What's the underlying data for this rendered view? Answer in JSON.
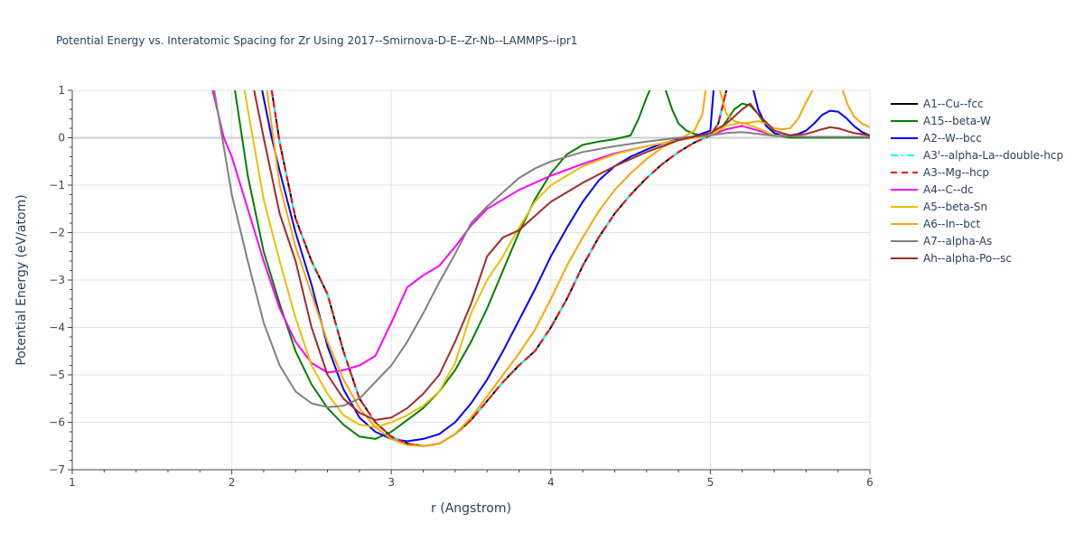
{
  "chart_data": {
    "type": "line",
    "title": "Potential Energy vs. Interatomic Spacing for Zr Using 2017--Smirnova-D-E--Zr-Nb--LAMMPS--ipr1",
    "xlabel": "r (Angstrom)",
    "ylabel": "Potential Energy (eV/atom)",
    "xlim": [
      1,
      6
    ],
    "ylim": [
      -7,
      1
    ],
    "xticks": [
      1,
      2,
      3,
      4,
      5,
      6
    ],
    "yticks": [
      -7,
      -6,
      -5,
      -4,
      -3,
      -2,
      -1,
      0,
      1
    ],
    "grid": true,
    "legend_position": "right",
    "series": [
      {
        "name": "A1--Cu--fcc",
        "color": "#000000",
        "dash": "solid",
        "x": [
          2.25,
          2.3,
          2.4,
          2.5,
          2.6,
          2.7,
          2.8,
          2.9,
          3.0,
          3.1,
          3.2,
          3.3,
          3.4,
          3.5,
          3.6,
          3.7,
          3.8,
          3.9,
          4.0,
          4.1,
          4.2,
          4.3,
          4.4,
          4.5,
          4.6,
          4.7,
          4.8,
          4.9,
          5.0,
          5.05,
          5.1
        ],
        "y": [
          1,
          -0.1,
          -1.7,
          -2.6,
          -3.3,
          -4.5,
          -5.5,
          -6.0,
          -6.3,
          -6.45,
          -6.5,
          -6.45,
          -6.25,
          -5.95,
          -5.55,
          -5.15,
          -4.8,
          -4.5,
          -4.0,
          -3.4,
          -2.7,
          -2.1,
          -1.6,
          -1.2,
          -0.85,
          -0.55,
          -0.3,
          -0.1,
          0.05,
          0.3,
          1
        ]
      },
      {
        "name": "A15--beta-W",
        "color": "#008000",
        "dash": "solid",
        "x": [
          2.02,
          2.1,
          2.2,
          2.3,
          2.4,
          2.5,
          2.6,
          2.7,
          2.8,
          2.9,
          3.0,
          3.1,
          3.2,
          3.3,
          3.4,
          3.5,
          3.6,
          3.7,
          3.8,
          3.9,
          4.0,
          4.1,
          4.2,
          4.3,
          4.4,
          4.5,
          4.55,
          4.6,
          4.62
        ],
        "y": [
          1,
          -0.8,
          -2.4,
          -3.5,
          -4.5,
          -5.2,
          -5.7,
          -6.05,
          -6.3,
          -6.35,
          -6.2,
          -5.95,
          -5.7,
          -5.35,
          -4.9,
          -4.3,
          -3.6,
          -2.8,
          -2.0,
          -1.3,
          -0.75,
          -0.35,
          -0.15,
          -0.08,
          -0.03,
          0.05,
          0.4,
          0.85,
          1
        ]
      },
      {
        "name": "A15--beta-W",
        "color": "#008000",
        "dash": "solid",
        "x": [
          4.72,
          4.76,
          4.8,
          4.85,
          4.9,
          4.95,
          5.0,
          5.05,
          5.1,
          5.15,
          5.2,
          5.25,
          5.3,
          5.35,
          5.4,
          5.45,
          5.5,
          5.6,
          5.7,
          5.8,
          5.9,
          6.0
        ],
        "y": [
          1,
          0.6,
          0.3,
          0.15,
          0.08,
          0.05,
          0.05,
          0.12,
          0.35,
          0.6,
          0.72,
          0.68,
          0.5,
          0.25,
          0.1,
          0.03,
          0.0,
          0.0,
          0.0,
          0.0,
          0.0,
          0.0
        ]
      },
      {
        "name": "A2--W--bcc",
        "color": "#0000ff",
        "dash": "solid",
        "x": [
          2.19,
          2.25,
          2.3,
          2.4,
          2.5,
          2.6,
          2.7,
          2.8,
          2.9,
          3.0,
          3.1,
          3.2,
          3.3,
          3.4,
          3.5,
          3.6,
          3.7,
          3.8,
          3.9,
          4.0,
          4.1,
          4.2,
          4.3,
          4.4,
          4.5,
          4.6,
          4.7,
          4.8,
          4.9,
          5.0,
          5.02
        ],
        "y": [
          1,
          0.0,
          -0.7,
          -2.0,
          -3.1,
          -4.4,
          -5.3,
          -5.9,
          -6.2,
          -6.35,
          -6.4,
          -6.35,
          -6.25,
          -6.0,
          -5.6,
          -5.1,
          -4.5,
          -3.85,
          -3.2,
          -2.5,
          -1.9,
          -1.35,
          -0.9,
          -0.6,
          -0.4,
          -0.25,
          -0.12,
          -0.03,
          0.03,
          0.15,
          1
        ]
      },
      {
        "name": "A2--W--bcc",
        "color": "#0000ff",
        "dash": "solid",
        "x": [
          5.27,
          5.3,
          5.35,
          5.4,
          5.45,
          5.5,
          5.55,
          5.6,
          5.65,
          5.7,
          5.75,
          5.8,
          5.85,
          5.9,
          5.95,
          6.0
        ],
        "y": [
          1,
          0.6,
          0.25,
          0.1,
          0.05,
          0.05,
          0.08,
          0.15,
          0.3,
          0.48,
          0.57,
          0.55,
          0.42,
          0.25,
          0.12,
          0.05
        ]
      },
      {
        "name": "A3'--alpha-La--double-hcp",
        "color": "#00ffff",
        "dash": "dashdot",
        "x": [
          2.25,
          2.3,
          2.4,
          2.5,
          2.6,
          2.7,
          2.8,
          2.9,
          3.0,
          3.1,
          3.2,
          3.3,
          3.4,
          3.5,
          3.6,
          3.7,
          3.8,
          3.9,
          4.0,
          4.1,
          4.2,
          4.3,
          4.4,
          4.5,
          4.6,
          4.7,
          4.8,
          4.9,
          5.0,
          5.05,
          5.1
        ],
        "y": [
          1,
          -0.1,
          -1.7,
          -2.6,
          -3.3,
          -4.5,
          -5.5,
          -6.0,
          -6.3,
          -6.45,
          -6.5,
          -6.45,
          -6.25,
          -5.95,
          -5.55,
          -5.15,
          -4.8,
          -4.5,
          -4.0,
          -3.4,
          -2.7,
          -2.1,
          -1.6,
          -1.2,
          -0.85,
          -0.55,
          -0.3,
          -0.1,
          0.05,
          0.3,
          1
        ]
      },
      {
        "name": "A3--Mg--hcp",
        "color": "#ff0000",
        "dash": "dash",
        "x": [
          2.25,
          2.3,
          2.4,
          2.5,
          2.6,
          2.7,
          2.8,
          2.9,
          3.0,
          3.1,
          3.2,
          3.3,
          3.4,
          3.5,
          3.6,
          3.7,
          3.8,
          3.9,
          4.0,
          4.1,
          4.2,
          4.3,
          4.4,
          4.5,
          4.6,
          4.7,
          4.8,
          4.9,
          5.0,
          5.05,
          5.1
        ],
        "y": [
          1,
          -0.1,
          -1.7,
          -2.6,
          -3.3,
          -4.5,
          -5.5,
          -6.0,
          -6.3,
          -6.45,
          -6.5,
          -6.45,
          -6.25,
          -5.95,
          -5.55,
          -5.15,
          -4.8,
          -4.5,
          -4.0,
          -3.4,
          -2.7,
          -2.1,
          -1.6,
          -1.2,
          -0.85,
          -0.55,
          -0.3,
          -0.1,
          0.05,
          0.3,
          1
        ]
      },
      {
        "name": "A4--C--dc",
        "color": "#ff00ff",
        "dash": "solid",
        "x": [
          1.88,
          1.95,
          2.0,
          2.1,
          2.2,
          2.3,
          2.4,
          2.5,
          2.6,
          2.7,
          2.8,
          2.9,
          3.0,
          3.1,
          3.2,
          3.3,
          3.4,
          3.5,
          3.6,
          3.7,
          3.8,
          3.9,
          4.0,
          4.2,
          4.4,
          4.6,
          4.8,
          5.0,
          5.1,
          5.2,
          5.3,
          5.4,
          5.6,
          5.8,
          6.0
        ],
        "y": [
          1,
          0.0,
          -0.4,
          -1.5,
          -2.6,
          -3.6,
          -4.3,
          -4.75,
          -4.95,
          -4.9,
          -4.8,
          -4.6,
          -3.9,
          -3.15,
          -2.9,
          -2.7,
          -2.3,
          -1.85,
          -1.5,
          -1.3,
          -1.1,
          -0.95,
          -0.8,
          -0.55,
          -0.33,
          -0.18,
          -0.05,
          0.05,
          0.18,
          0.25,
          0.15,
          0.05,
          0.02,
          0.02,
          0.02
        ]
      },
      {
        "name": "A5--beta-Sn",
        "color": "#e6c300",
        "dash": "solid",
        "x": [
          2.08,
          2.1,
          2.2,
          2.3,
          2.4,
          2.5,
          2.6,
          2.7,
          2.8,
          2.9,
          3.0,
          3.1,
          3.2,
          3.3,
          3.4,
          3.5,
          3.6,
          3.7,
          3.8,
          3.9,
          4.0,
          4.2,
          4.4,
          4.6,
          4.8,
          5.0,
          5.1,
          5.2,
          5.3,
          5.4,
          5.6,
          5.8,
          6.0
        ],
        "y": [
          1,
          0.6,
          -1.3,
          -2.6,
          -3.8,
          -4.8,
          -5.4,
          -5.85,
          -6.05,
          -6.1,
          -6.0,
          -5.85,
          -5.65,
          -5.35,
          -4.75,
          -3.7,
          -3.0,
          -2.5,
          -1.9,
          -1.35,
          -1.0,
          -0.6,
          -0.35,
          -0.18,
          -0.05,
          0.05,
          0.25,
          0.32,
          0.2,
          0.05,
          0.02,
          0.02,
          0.02
        ]
      },
      {
        "name": "A6--In--bct",
        "color": "#ffa500",
        "dash": "solid",
        "x": [
          2.22,
          2.3,
          2.4,
          2.5,
          2.6,
          2.7,
          2.8,
          2.9,
          3.0,
          3.1,
          3.2,
          3.3,
          3.4,
          3.5,
          3.6,
          3.7,
          3.8,
          3.9,
          4.0,
          4.1,
          4.2,
          4.3,
          4.4,
          4.5,
          4.6,
          4.7,
          4.8,
          4.9,
          4.95,
          4.97
        ],
        "y": [
          1,
          -1.0,
          -2.3,
          -3.3,
          -4.3,
          -5.1,
          -5.7,
          -6.1,
          -6.35,
          -6.48,
          -6.5,
          -6.45,
          -6.25,
          -5.9,
          -5.45,
          -5.0,
          -4.55,
          -4.05,
          -3.4,
          -2.7,
          -2.1,
          -1.55,
          -1.1,
          -0.75,
          -0.45,
          -0.2,
          -0.05,
          0.15,
          0.5,
          1
        ]
      },
      {
        "name": "A6--In--bct",
        "color": "#ffa500",
        "dash": "solid",
        "x": [
          5.06,
          5.1,
          5.15,
          5.2,
          5.25,
          5.3,
          5.35,
          5.4,
          5.45,
          5.5,
          5.55,
          5.6,
          5.64
        ],
        "y": [
          1,
          0.5,
          0.35,
          0.3,
          0.32,
          0.35,
          0.3,
          0.2,
          0.18,
          0.2,
          0.4,
          0.75,
          1
        ]
      },
      {
        "name": "A6--In--bct",
        "color": "#ffa500",
        "dash": "solid",
        "x": [
          5.83,
          5.86,
          5.9,
          5.95,
          6.0
        ],
        "y": [
          1,
          0.7,
          0.45,
          0.3,
          0.22
        ]
      },
      {
        "name": "A7--alpha-As",
        "color": "#808080",
        "dash": "solid",
        "x": [
          1.89,
          2.0,
          2.1,
          2.2,
          2.3,
          2.4,
          2.5,
          2.6,
          2.7,
          2.8,
          2.9,
          3.0,
          3.1,
          3.2,
          3.3,
          3.4,
          3.5,
          3.6,
          3.7,
          3.8,
          3.9,
          4.0,
          4.2,
          4.4,
          4.6,
          4.8,
          5.0,
          5.1,
          5.2,
          5.3,
          5.4,
          5.6,
          5.8,
          6.0
        ],
        "y": [
          1,
          -1.2,
          -2.6,
          -3.9,
          -4.8,
          -5.35,
          -5.6,
          -5.68,
          -5.65,
          -5.5,
          -5.15,
          -4.8,
          -4.3,
          -3.7,
          -3.05,
          -2.45,
          -1.8,
          -1.45,
          -1.15,
          -0.85,
          -0.65,
          -0.5,
          -0.3,
          -0.18,
          -0.08,
          0.0,
          0.05,
          0.1,
          0.12,
          0.08,
          0.04,
          0.02,
          0.02,
          0.02
        ]
      },
      {
        "name": "Ah--alpha-Po--sc",
        "color": "#a52a2a",
        "dash": "solid",
        "x": [
          2.14,
          2.2,
          2.3,
          2.4,
          2.5,
          2.6,
          2.7,
          2.8,
          2.9,
          3.0,
          3.1,
          3.2,
          3.3,
          3.4,
          3.5,
          3.6,
          3.7,
          3.8,
          3.9,
          4.0,
          4.2,
          4.4,
          4.6,
          4.8,
          5.0,
          5.1,
          5.2,
          5.25,
          5.3,
          5.4,
          5.5,
          5.6,
          5.7,
          5.75,
          5.8,
          5.9,
          6.0
        ],
        "y": [
          1,
          0.0,
          -1.6,
          -2.6,
          -4.0,
          -5.0,
          -5.5,
          -5.8,
          -5.95,
          -5.9,
          -5.7,
          -5.4,
          -5.0,
          -4.3,
          -3.5,
          -2.5,
          -2.1,
          -1.95,
          -1.65,
          -1.35,
          -0.95,
          -0.6,
          -0.3,
          -0.05,
          0.1,
          0.3,
          0.6,
          0.72,
          0.5,
          0.15,
          0.05,
          0.08,
          0.18,
          0.22,
          0.2,
          0.1,
          0.05
        ]
      }
    ]
  }
}
